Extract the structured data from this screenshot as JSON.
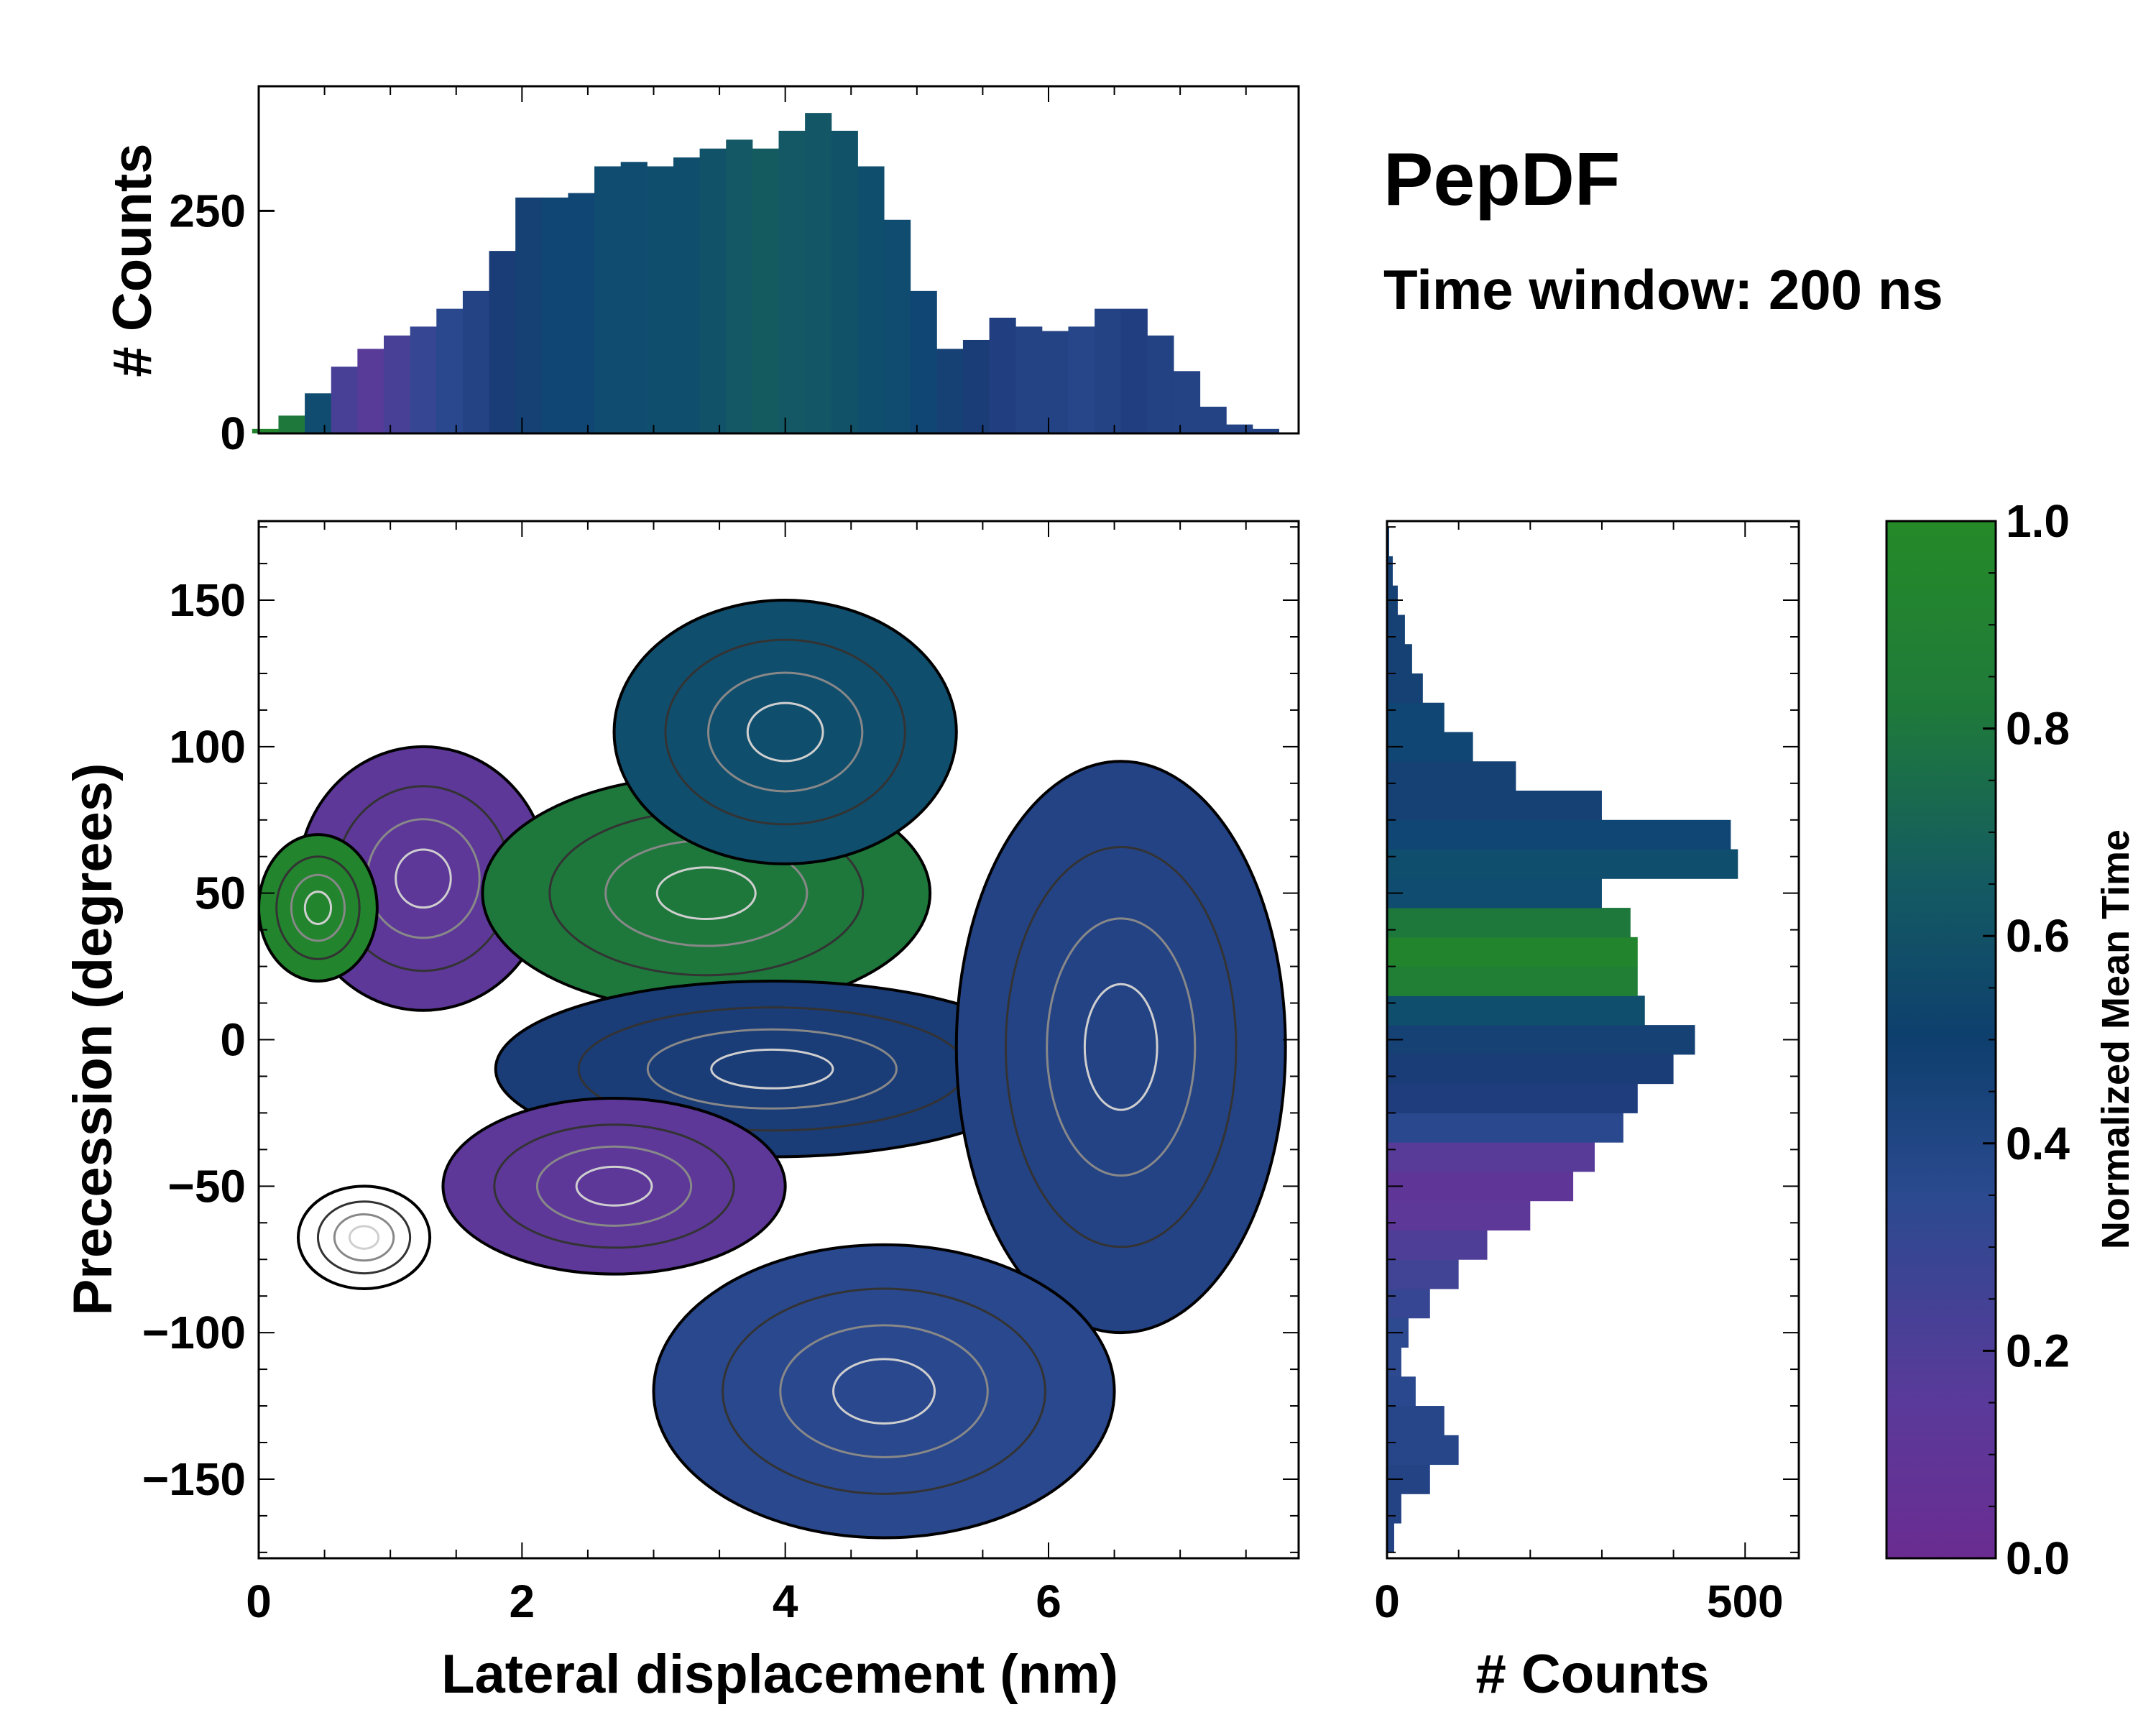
{
  "colors": {
    "colormap": [
      "#6a2c91",
      "#5a3a9a",
      "#2b4a8f",
      "#1c3a78",
      "#0e4872",
      "#145a62",
      "#1f7a3a",
      "#258a28"
    ],
    "contour_outer": "#000000",
    "contour_inner": "#cfcfcf"
  },
  "chart_data": [
    {
      "id": "top_histogram",
      "type": "bar",
      "xlabel": "",
      "ylabel": "# Counts",
      "xlim": [
        0,
        7.9
      ],
      "ylim": [
        0,
        390
      ],
      "yticks": [
        0,
        250
      ],
      "x": [
        0.05,
        0.25,
        0.45,
        0.65,
        0.85,
        1.05,
        1.25,
        1.45,
        1.65,
        1.85,
        2.05,
        2.25,
        2.45,
        2.65,
        2.85,
        3.05,
        3.25,
        3.45,
        3.65,
        3.85,
        4.05,
        4.25,
        4.45,
        4.65,
        4.85,
        5.05,
        5.25,
        5.45,
        5.65,
        5.85,
        6.05,
        6.25,
        6.45,
        6.65,
        6.85,
        7.05,
        7.25,
        7.45,
        7.65,
        7.85
      ],
      "values": [
        5,
        20,
        45,
        75,
        95,
        110,
        120,
        140,
        160,
        205,
        265,
        265,
        270,
        300,
        305,
        300,
        310,
        320,
        330,
        320,
        340,
        360,
        340,
        300,
        240,
        160,
        95,
        105,
        130,
        120,
        115,
        120,
        140,
        140,
        110,
        70,
        30,
        10,
        5,
        0
      ],
      "mean_time": [
        0.95,
        0.85,
        0.6,
        0.2,
        0.15,
        0.2,
        0.25,
        0.3,
        0.35,
        0.45,
        0.5,
        0.55,
        0.55,
        0.6,
        0.6,
        0.62,
        0.62,
        0.65,
        0.7,
        0.72,
        0.7,
        0.68,
        0.65,
        0.62,
        0.6,
        0.55,
        0.5,
        0.45,
        0.38,
        0.35,
        0.35,
        0.32,
        0.35,
        0.38,
        0.36,
        0.35,
        0.35,
        0.35,
        0.35,
        0.35
      ]
    },
    {
      "id": "main_heatmap",
      "type": "heatmap",
      "xlabel": "Lateral displacement (nm)",
      "ylabel": "Precession (degrees)",
      "xlim": [
        0,
        7.9
      ],
      "ylim": [
        -177,
        177
      ],
      "xticks": [
        0,
        2,
        4,
        6
      ],
      "yticks": [
        -150,
        -100,
        -50,
        0,
        50,
        100,
        150
      ],
      "regions": [
        {
          "name": "upper-left purple cluster",
          "x": [
            0.3,
            2.2
          ],
          "y": [
            10,
            100
          ],
          "mean_time": 0.12
        },
        {
          "name": "left green cluster",
          "x": [
            0.0,
            0.9
          ],
          "y": [
            20,
            70
          ],
          "mean_time": 0.95
        },
        {
          "name": "central green cluster",
          "x": [
            1.7,
            5.1
          ],
          "y": [
            10,
            90
          ],
          "mean_time": 0.85
        },
        {
          "name": "upper teal cluster",
          "x": [
            2.7,
            5.3
          ],
          "y": [
            60,
            150
          ],
          "mean_time": 0.62
        },
        {
          "name": "central blue cluster",
          "x": [
            1.8,
            6.0
          ],
          "y": [
            -40,
            20
          ],
          "mean_time": 0.45
        },
        {
          "name": "lower purple cluster",
          "x": [
            1.4,
            4.0
          ],
          "y": [
            -80,
            -20
          ],
          "mean_time": 0.12
        },
        {
          "name": "right blue cluster",
          "x": [
            5.3,
            7.8
          ],
          "y": [
            -100,
            95
          ],
          "mean_time": 0.35
        },
        {
          "name": "lower blue cluster",
          "x": [
            3.0,
            6.5
          ],
          "y": [
            -170,
            -70
          ],
          "mean_time": 0.3
        },
        {
          "name": "isolated left lobe",
          "x": [
            0.3,
            1.3
          ],
          "y": [
            -85,
            -50
          ],
          "mean_time": null
        }
      ],
      "contours": "density contours, outer level black, inner levels grey to white"
    },
    {
      "id": "right_histogram",
      "type": "bar",
      "orientation": "horizontal",
      "xlabel": "# Counts",
      "ylabel": "",
      "xlim": [
        0,
        575
      ],
      "ylim": [
        -177,
        177
      ],
      "xticks": [
        0,
        500
      ],
      "y": [
        -170,
        -160,
        -150,
        -140,
        -130,
        -120,
        -110,
        -100,
        -90,
        -80,
        -70,
        -60,
        -50,
        -40,
        -30,
        -20,
        -10,
        0,
        10,
        20,
        30,
        40,
        50,
        60,
        70,
        80,
        90,
        100,
        110,
        120,
        130,
        140,
        150,
        160,
        170
      ],
      "values": [
        10,
        20,
        60,
        100,
        80,
        40,
        20,
        30,
        60,
        100,
        140,
        200,
        260,
        290,
        330,
        350,
        400,
        430,
        360,
        350,
        350,
        340,
        300,
        490,
        480,
        300,
        180,
        120,
        80,
        50,
        35,
        25,
        15,
        8,
        3
      ],
      "mean_time": [
        0.35,
        0.35,
        0.35,
        0.32,
        0.32,
        0.3,
        0.28,
        0.28,
        0.25,
        0.22,
        0.18,
        0.12,
        0.1,
        0.15,
        0.3,
        0.4,
        0.45,
        0.5,
        0.62,
        0.9,
        0.95,
        0.85,
        0.6,
        0.62,
        0.55,
        0.5,
        0.5,
        0.55,
        0.55,
        0.5,
        0.5,
        0.5,
        0.5,
        0.5,
        0.5
      ]
    },
    {
      "id": "colorbar",
      "type": "colorbar",
      "label": "Normalized Mean Time",
      "range": [
        0,
        1
      ],
      "ticks": [
        "0.0",
        "0.2",
        "0.4",
        "0.6",
        "0.8",
        "1.0"
      ]
    }
  ],
  "annotations": {
    "title": "PepDF",
    "subtitle": "Time window: 200 ns"
  },
  "axes_text": {
    "top_ylabel": "# Counts",
    "main_xlabel": "Lateral displacement (nm)",
    "main_ylabel": "Precession (degrees)",
    "right_xlabel": "# Counts",
    "cbar_label": "Normalized Mean Time"
  }
}
